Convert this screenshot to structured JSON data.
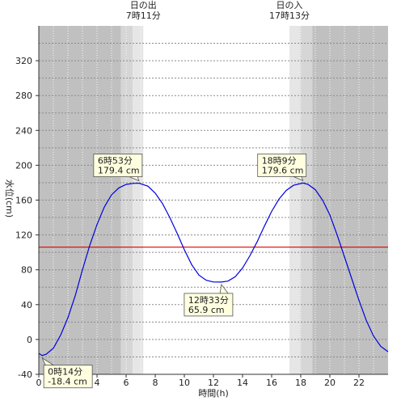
{
  "chart_data": {
    "type": "line",
    "xlabel": "時間(h)",
    "ylabel": "水位(cm)",
    "xlim": [
      0,
      24
    ],
    "ylim": [
      -40,
      360
    ],
    "x_ticks": [
      0,
      2,
      4,
      6,
      8,
      10,
      12,
      14,
      16,
      18,
      20,
      22
    ],
    "x_tick_labels": [
      "0",
      "2",
      "4",
      "6",
      "8",
      "10",
      "12",
      "14",
      "16",
      "18",
      "20",
      "22"
    ],
    "y_ticks": [
      -40,
      0,
      40,
      80,
      120,
      160,
      200,
      240,
      280,
      320
    ],
    "y_tick_labels": [
      "-40",
      "0",
      "40",
      "80",
      "120",
      "160",
      "200",
      "240",
      "280",
      "320"
    ],
    "grid": true,
    "reference_line": {
      "y": 106,
      "color": "#e00000"
    },
    "bands": [
      {
        "from": 0,
        "to": 5.65,
        "color": "#c0c0c0"
      },
      {
        "from": 5.65,
        "to": 6.45,
        "color": "#d6d6d6"
      },
      {
        "from": 6.45,
        "to": 7.18,
        "color": "#e6e6e6"
      },
      {
        "from": 17.22,
        "to": 17.95,
        "color": "#e6e6e6"
      },
      {
        "from": 17.95,
        "to": 18.8,
        "color": "#d6d6d6"
      },
      {
        "from": 18.8,
        "to": 24,
        "color": "#c0c0c0"
      }
    ],
    "sun_events": [
      {
        "x": 7.18,
        "name": "日の出",
        "time": "7時11分"
      },
      {
        "x": 17.22,
        "name": "日の入",
        "time": "17時13分"
      }
    ],
    "series": [
      {
        "color": "#0000dd",
        "x": [
          0,
          0.23,
          0.5,
          1,
          1.5,
          2,
          2.5,
          3,
          3.5,
          4,
          4.5,
          5,
          5.5,
          6,
          6.5,
          6.88,
          7.5,
          8,
          8.5,
          9,
          9.5,
          10,
          10.5,
          11,
          11.5,
          12,
          12.55,
          13,
          13.5,
          14,
          14.5,
          15,
          15.5,
          16,
          16.5,
          17,
          17.5,
          18.15,
          18.5,
          19,
          19.5,
          20,
          20.5,
          21,
          21.5,
          22,
          22.5,
          23,
          23.5,
          24
        ],
        "y": [
          -16,
          -18.4,
          -17,
          -10,
          5,
          25,
          50,
          80,
          108,
          132,
          152,
          166,
          174,
          178,
          179.2,
          179.4,
          176,
          168,
          156,
          140,
          122,
          103,
          86,
          74,
          68,
          66,
          65.9,
          67,
          72,
          82,
          96,
          112,
          130,
          147,
          161,
          171,
          177,
          179.6,
          178,
          172,
          160,
          143,
          120,
          95,
          70,
          45,
          22,
          4,
          -8,
          -14
        ]
      }
    ],
    "annotations": [
      {
        "x": 6.88,
        "y": 179.4,
        "line1": "6時53分",
        "line2": "179.4 cm"
      },
      {
        "x": 18.15,
        "y": 179.6,
        "line1": "18時9分",
        "line2": "179.6 cm"
      },
      {
        "x": 12.55,
        "y": 65.9,
        "line1": "12時33分",
        "line2": "65.9 cm"
      },
      {
        "x": 0.23,
        "y": -18.4,
        "line1": "0時14分",
        "line2": "-18.4 cm"
      }
    ]
  }
}
